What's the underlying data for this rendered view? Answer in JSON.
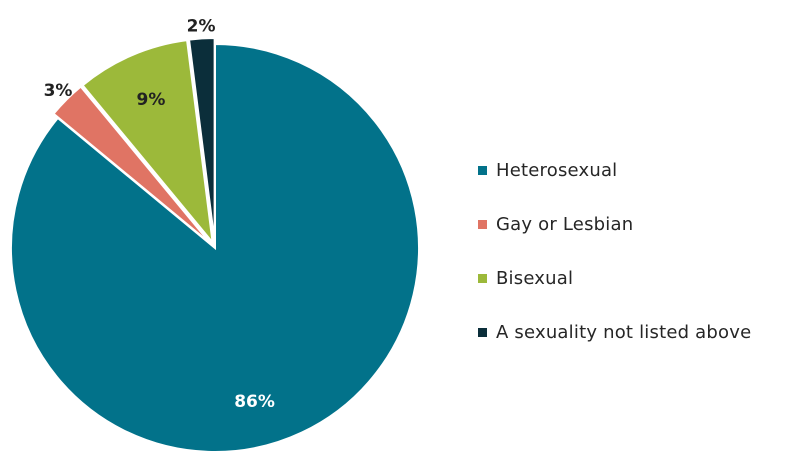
{
  "chart_data": {
    "type": "pie",
    "categories": [
      "Heterosexual",
      "Gay or Lesbian",
      "Bisexual",
      "A sexuality not listed above"
    ],
    "values": [
      86,
      3,
      9,
      2
    ],
    "labels": [
      "86%",
      "3%",
      "9%",
      "2%"
    ],
    "colors": [
      "#02728A",
      "#E07464",
      "#9CB93A",
      "#0B2E3A"
    ],
    "label_colors": [
      "#ffffff",
      "#222222",
      "#222222",
      "#222222"
    ],
    "legend_position": "right"
  }
}
